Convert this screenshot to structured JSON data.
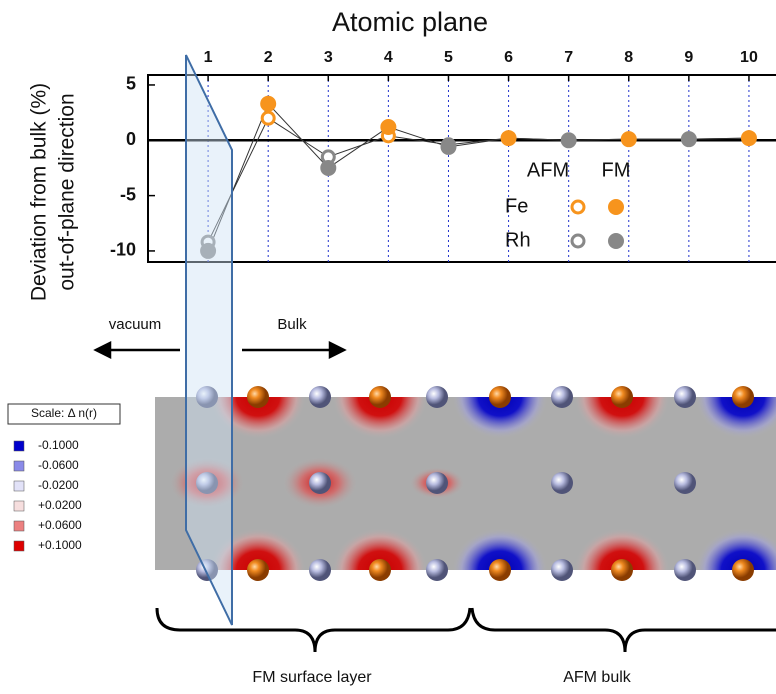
{
  "chart_data": {
    "type": "line",
    "title": "Atomic plane",
    "y_label": [
      "Deviation from bulk (%)",
      "out-of-plane direction"
    ],
    "x": [
      1,
      2,
      3,
      4,
      5,
      6,
      7,
      8,
      9,
      10
    ],
    "xticks": [
      1,
      2,
      3,
      4,
      5,
      6,
      7,
      8,
      9,
      10
    ],
    "xlim": [
      0,
      10.45
    ],
    "ylim": [
      -11,
      5.9
    ],
    "yticks": [
      5,
      0,
      -5,
      -10
    ],
    "grid": true,
    "legend_columns": [
      "AFM",
      "FM"
    ],
    "series": [
      {
        "name": "Fe",
        "color": "#f7941d",
        "afm": [
          null,
          2.0,
          null,
          0.4,
          null,
          0.2,
          null,
          0.1,
          null,
          0.2
        ],
        "fm": [
          null,
          3.3,
          null,
          1.2,
          null,
          0.2,
          null,
          0.1,
          null,
          0.2
        ]
      },
      {
        "name": "Rh",
        "color": "#888888",
        "afm": [
          -9.2,
          null,
          -1.5,
          null,
          -0.4,
          null,
          0,
          null,
          0.1,
          null
        ],
        "fm": [
          -10,
          null,
          -2.5,
          null,
          -0.6,
          null,
          0,
          null,
          0.1,
          null
        ]
      }
    ]
  },
  "annotations": {
    "left": "vacuum",
    "right": "Bulk"
  },
  "scale": {
    "title": "Scale:  Δ n(r)",
    "entries": [
      {
        "label": "-0.1000",
        "color": "#0000cc"
      },
      {
        "label": "-0.0600",
        "color": "#8a8ae8"
      },
      {
        "label": "-0.0200",
        "color": "#e2e2f8"
      },
      {
        "label": "+0.0200",
        "color": "#f6dede"
      },
      {
        "label": "+0.0600",
        "color": "#ec8080"
      },
      {
        "label": "+0.1000",
        "color": "#dd0000"
      }
    ]
  },
  "regions": [
    "FM surface layer",
    "AFM bulk"
  ]
}
